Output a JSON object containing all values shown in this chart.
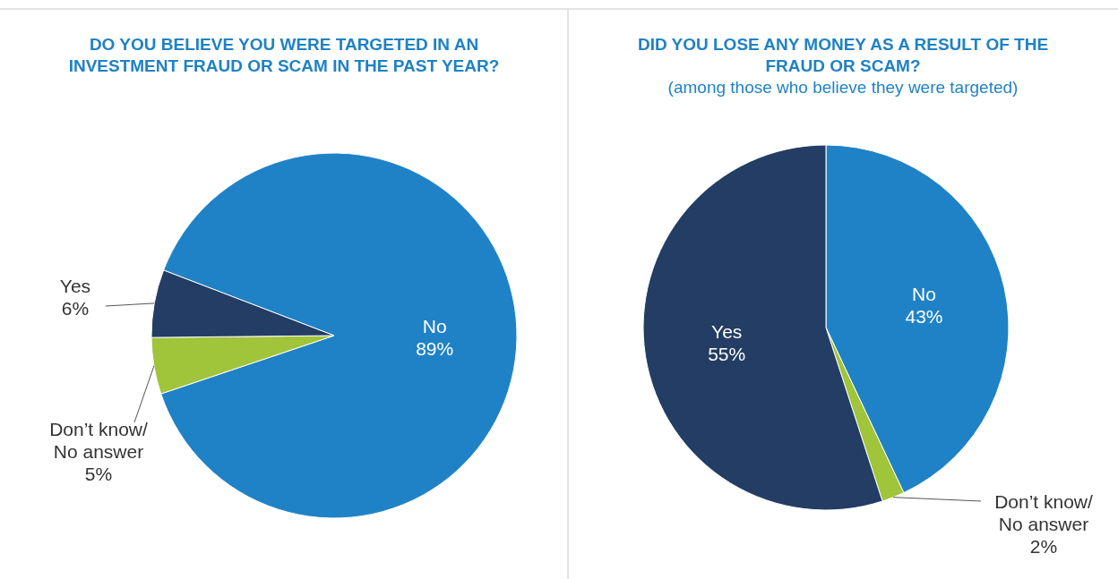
{
  "chart_data": [
    {
      "type": "pie",
      "title": "DO YOU BELIEVE YOU WERE TARGETED IN AN INVESTMENT FRAUD OR SCAM IN THE PAST YEAR?",
      "categories": [
        "No",
        "Don’t know/ No answer",
        "Yes"
      ],
      "values": [
        89,
        5,
        6
      ],
      "value_labels": [
        "89%",
        "5%",
        "6%"
      ],
      "colors": [
        "#2082c6",
        "#a0c43a",
        "#233d64"
      ]
    },
    {
      "type": "pie",
      "title": "DID YOU LOSE ANY MONEY AS A RESULT OF THE FRAUD OR SCAM?",
      "subtitle": "(among those who believe they were targeted)",
      "categories": [
        "No",
        "Don’t know/ No answer",
        "Yes"
      ],
      "values": [
        43,
        2,
        55
      ],
      "value_labels": [
        "43%",
        "2%",
        "55%"
      ],
      "colors": [
        "#2082c6",
        "#a0c43a",
        "#233d64"
      ]
    }
  ]
}
